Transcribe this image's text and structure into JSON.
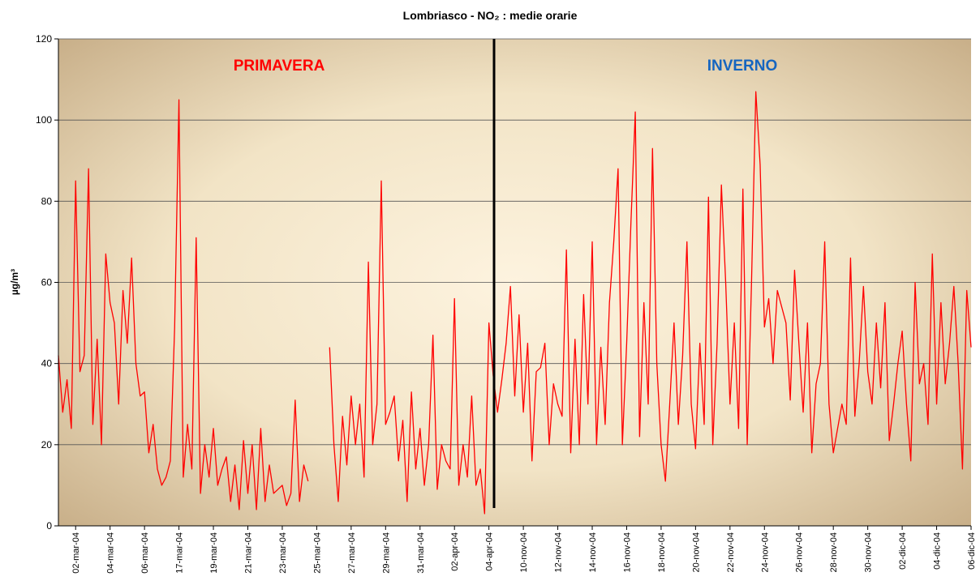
{
  "chart_data": {
    "type": "line",
    "title": "Lombriasco - NO₂ : medie orarie",
    "y_label": "µg/m³",
    "annotations": [
      "PRIMAVERA",
      "INVERNO"
    ],
    "annotation_colors": [
      "#ff0000",
      "#1565c0"
    ],
    "ylim": [
      0,
      120
    ],
    "yticks": [
      0,
      20,
      40,
      60,
      80,
      100,
      120
    ],
    "grid": true,
    "categories": [
      null,
      null,
      null,
      null,
      "02-mar-04",
      null,
      null,
      null,
      null,
      null,
      null,
      null,
      "04-mar-04",
      null,
      null,
      null,
      null,
      null,
      null,
      null,
      "06-mar-04",
      null,
      null,
      null,
      null,
      null,
      null,
      null,
      "17-mar-04",
      null,
      null,
      null,
      null,
      null,
      null,
      null,
      "19-mar-04",
      null,
      null,
      null,
      null,
      null,
      null,
      null,
      "21-mar-04",
      null,
      null,
      null,
      null,
      null,
      null,
      null,
      "23-mar-04",
      null,
      null,
      null,
      null,
      null,
      null,
      null,
      "25-mar-04",
      null,
      null,
      null,
      null,
      null,
      null,
      null,
      "27-mar-04",
      null,
      null,
      null,
      null,
      null,
      null,
      null,
      "29-mar-04",
      null,
      null,
      null,
      null,
      null,
      null,
      null,
      "31-mar-04",
      null,
      null,
      null,
      null,
      null,
      null,
      null,
      "02-apr-04",
      null,
      null,
      null,
      null,
      null,
      null,
      null,
      "04-apr-04",
      null,
      null,
      null,
      null,
      null,
      null,
      null,
      "10-nov-04",
      null,
      null,
      null,
      null,
      null,
      null,
      null,
      "12-nov-04",
      null,
      null,
      null,
      null,
      null,
      null,
      null,
      "14-nov-04",
      null,
      null,
      null,
      null,
      null,
      null,
      null,
      "16-nov-04",
      null,
      null,
      null,
      null,
      null,
      null,
      null,
      "18-nov-04",
      null,
      null,
      null,
      null,
      null,
      null,
      null,
      "20-nov-04",
      null,
      null,
      null,
      null,
      null,
      null,
      null,
      "22-nov-04",
      null,
      null,
      null,
      null,
      null,
      null,
      null,
      "24-nov-04",
      null,
      null,
      null,
      null,
      null,
      null,
      null,
      "26-nov-04",
      null,
      null,
      null,
      null,
      null,
      null,
      null,
      "28-nov-04",
      null,
      null,
      null,
      null,
      null,
      null,
      null,
      "30-nov-04",
      null,
      null,
      null,
      null,
      null,
      null,
      null,
      "02-dic-04",
      null,
      null,
      null,
      null,
      null,
      null,
      null,
      "04-dic-04",
      null,
      null,
      null,
      null,
      null,
      null,
      null,
      "06-dic-04"
    ],
    "series": [
      {
        "color": "#ff0000",
        "values": [
          42,
          28,
          36,
          24,
          85,
          38,
          42,
          88,
          25,
          46,
          20,
          67,
          55,
          50,
          30,
          58,
          45,
          66,
          40,
          32,
          33,
          18,
          25,
          14,
          10,
          12,
          16,
          49,
          105,
          12,
          25,
          14,
          71,
          8,
          20,
          12,
          24,
          10,
          14,
          17,
          6,
          15,
          4,
          21,
          8,
          20,
          4,
          24,
          6,
          15,
          8,
          9,
          10,
          5,
          8,
          31,
          6,
          15,
          11,
          null,
          null,
          null,
          null,
          44,
          20,
          6,
          27,
          15,
          32,
          20,
          30,
          12,
          65,
          20,
          30,
          85,
          25,
          28,
          32,
          16,
          26,
          6,
          33,
          14,
          24,
          10,
          20,
          47,
          9,
          20,
          16,
          14,
          56,
          10,
          20,
          12,
          32,
          10,
          14,
          3,
          50,
          37,
          28,
          36,
          45,
          59,
          32,
          52,
          28,
          45,
          16,
          38,
          39,
          45,
          20,
          35,
          30,
          27,
          68,
          18,
          46,
          20,
          57,
          30,
          70,
          20,
          44,
          25,
          55,
          70,
          88,
          20,
          45,
          75,
          102,
          22,
          55,
          30,
          93,
          40,
          20,
          11,
          30,
          50,
          25,
          42,
          70,
          30,
          19,
          45,
          25,
          81,
          20,
          45,
          84,
          60,
          30,
          50,
          24,
          83,
          20,
          60,
          107,
          89,
          49,
          56,
          40,
          58,
          54,
          50,
          31,
          63,
          45,
          28,
          50,
          18,
          35,
          40,
          70,
          30,
          18,
          24,
          30,
          25,
          66,
          27,
          40,
          59,
          38,
          30,
          50,
          34,
          55,
          21,
          30,
          40,
          48,
          30,
          16,
          60,
          35,
          40,
          25,
          67,
          30,
          55,
          35,
          45,
          59,
          40,
          14,
          58,
          44
        ]
      }
    ]
  }
}
